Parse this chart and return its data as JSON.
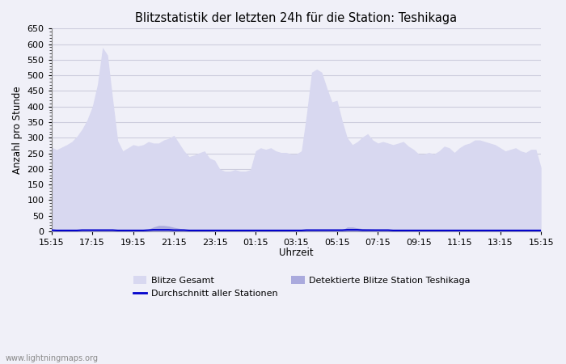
{
  "title": "Blitzstatistik der letzten 24h für die Station: Teshikaga",
  "ylabel": "Anzahl pro Stunde",
  "xlabel": "Uhrzeit",
  "watermark": "www.lightningmaps.org",
  "ylim": [
    0,
    650
  ],
  "yticks": [
    0,
    50,
    100,
    150,
    200,
    250,
    300,
    350,
    400,
    450,
    500,
    550,
    600,
    650
  ],
  "x_labels": [
    "15:15",
    "17:15",
    "19:15",
    "21:15",
    "23:15",
    "01:15",
    "03:15",
    "05:15",
    "07:15",
    "09:15",
    "11:15",
    "13:15",
    "15:15"
  ],
  "bg_color": "#f0f0f8",
  "plot_bg_color": "#f0f0f8",
  "grid_color": "#ccccdd",
  "fill_color_light": "#d8d8f0",
  "fill_color_dark": "#aaaadd",
  "line_color": "#0000cc",
  "legend_patch1_color": "#d8d8f0",
  "legend_patch2_color": "#aaaadd",
  "legend_items": [
    "Blitze Gesamt",
    "Durchschnitt aller Stationen",
    "Detektierte Blitze Station Teshikaga"
  ],
  "gesamt_y": [
    270,
    262,
    270,
    278,
    288,
    305,
    328,
    358,
    400,
    470,
    590,
    565,
    425,
    290,
    258,
    268,
    278,
    274,
    278,
    288,
    283,
    283,
    293,
    298,
    308,
    283,
    258,
    240,
    245,
    252,
    258,
    235,
    228,
    200,
    193,
    193,
    198,
    193,
    193,
    198,
    258,
    268,
    263,
    268,
    258,
    253,
    253,
    248,
    248,
    258,
    375,
    510,
    520,
    510,
    460,
    415,
    420,
    355,
    300,
    278,
    288,
    303,
    313,
    293,
    283,
    288,
    283,
    278,
    283,
    288,
    273,
    263,
    248,
    248,
    253,
    248,
    258,
    273,
    268,
    253,
    268,
    278,
    283,
    293,
    293,
    288,
    283,
    278,
    268,
    258,
    263,
    268,
    258,
    253,
    263,
    263,
    205
  ],
  "detected_y": [
    5,
    4,
    3,
    3,
    4,
    4,
    5,
    6,
    5,
    5,
    5,
    6,
    6,
    5,
    3,
    3,
    3,
    3,
    4,
    7,
    14,
    19,
    19,
    17,
    13,
    10,
    7,
    5,
    4,
    4,
    3,
    3,
    3,
    3,
    3,
    3,
    4,
    3,
    3,
    3,
    3,
    4,
    4,
    4,
    4,
    4,
    4,
    4,
    4,
    4,
    5,
    5,
    5,
    4,
    4,
    4,
    4,
    4,
    14,
    14,
    11,
    9,
    8,
    7,
    6,
    5,
    5,
    4,
    4,
    4,
    4,
    4,
    3,
    3,
    3,
    3,
    3,
    3,
    3,
    3,
    3,
    3,
    3,
    3,
    3,
    3,
    3,
    3,
    3,
    3,
    3,
    3,
    3,
    3,
    3,
    3,
    3
  ],
  "avg_y": [
    4,
    3,
    3,
    3,
    3,
    3,
    4,
    4,
    4,
    4,
    4,
    4,
    4,
    3,
    3,
    3,
    3,
    3,
    3,
    4,
    5,
    5,
    5,
    5,
    4,
    4,
    4,
    3,
    3,
    3,
    3,
    3,
    3,
    3,
    3,
    3,
    3,
    3,
    3,
    3,
    3,
    3,
    3,
    3,
    3,
    3,
    3,
    3,
    3,
    3,
    4,
    4,
    4,
    4,
    4,
    4,
    4,
    4,
    5,
    5,
    5,
    4,
    4,
    4,
    4,
    4,
    4,
    3,
    3,
    3,
    3,
    3,
    3,
    3,
    3,
    3,
    3,
    3,
    3,
    3,
    3,
    3,
    3,
    3,
    3,
    3,
    3,
    3,
    3,
    3,
    3,
    3,
    3,
    3,
    3,
    3,
    3
  ]
}
